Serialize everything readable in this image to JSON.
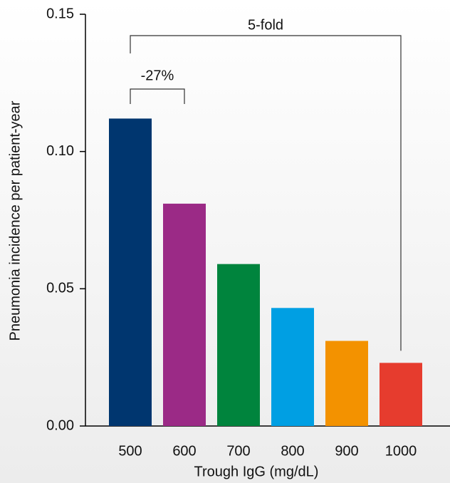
{
  "chart_data": {
    "type": "bar",
    "x_label": "Trough IgG (mg/dL)",
    "y_label": "Pneumonia incidence per patient-year",
    "categories": [
      "500",
      "600",
      "700",
      "800",
      "900",
      "1000"
    ],
    "values": [
      0.112,
      0.081,
      0.059,
      0.043,
      0.031,
      0.023
    ],
    "colors": [
      "#00366f",
      "#9b2a86",
      "#00843d",
      "#009fe3",
      "#f39200",
      "#e63c2e"
    ],
    "ylim": [
      0,
      0.15
    ],
    "yticks": [
      {
        "value": 0,
        "label": "0.00"
      },
      {
        "value": 0.05,
        "label": "0.05"
      },
      {
        "value": 0.1,
        "label": "0.10"
      },
      {
        "value": 0.15,
        "label": "0.15"
      }
    ],
    "annotations": [
      "5-fold",
      "-27%"
    ]
  }
}
